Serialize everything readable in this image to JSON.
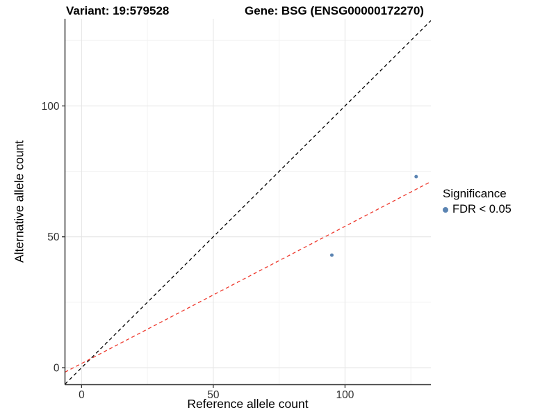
{
  "titles": {
    "variant": "Variant: 19:579528",
    "gene": "Gene: BSG (ENSG00000172270)"
  },
  "legend": {
    "title": "Significance",
    "items": [
      {
        "label": "FDR < 0.05",
        "color": "#5b84b2"
      }
    ]
  },
  "chart_data": {
    "type": "scatter",
    "title": "Variant: 19:579528    Gene: BSG (ENSG00000172270)",
    "xlabel": "Reference allele count",
    "ylabel": "Alternative allele count",
    "xlim": [
      -6.3,
      132.6
    ],
    "ylim": [
      -6.5,
      133.3
    ],
    "x_major_ticks": [
      0,
      50,
      100
    ],
    "y_major_ticks": [
      0,
      50,
      100
    ],
    "x_minor_ticks": [
      25,
      75,
      125
    ],
    "y_minor_ticks": [
      25,
      75,
      125
    ],
    "grid": true,
    "legend_position": "right",
    "series": [
      {
        "name": "FDR < 0.05",
        "color": "#5b84b2",
        "point_radius": 2.5,
        "points": [
          {
            "x": 95,
            "y": 43
          },
          {
            "x": 127,
            "y": 73
          }
        ]
      }
    ],
    "lines": [
      {
        "name": "identity-line",
        "slope": 1,
        "intercept": 0,
        "color": "#000000",
        "style": "dashed"
      },
      {
        "name": "fit-line",
        "slope": 0.524,
        "intercept": 1.6,
        "color": "#ee382c",
        "style": "dashed"
      }
    ],
    "colors": {
      "axis_line": "#333333",
      "tick_label": "#303030",
      "grid_major": "#e6e6e6",
      "grid_minor": "#f3f3f3",
      "background": "#ffffff"
    }
  }
}
